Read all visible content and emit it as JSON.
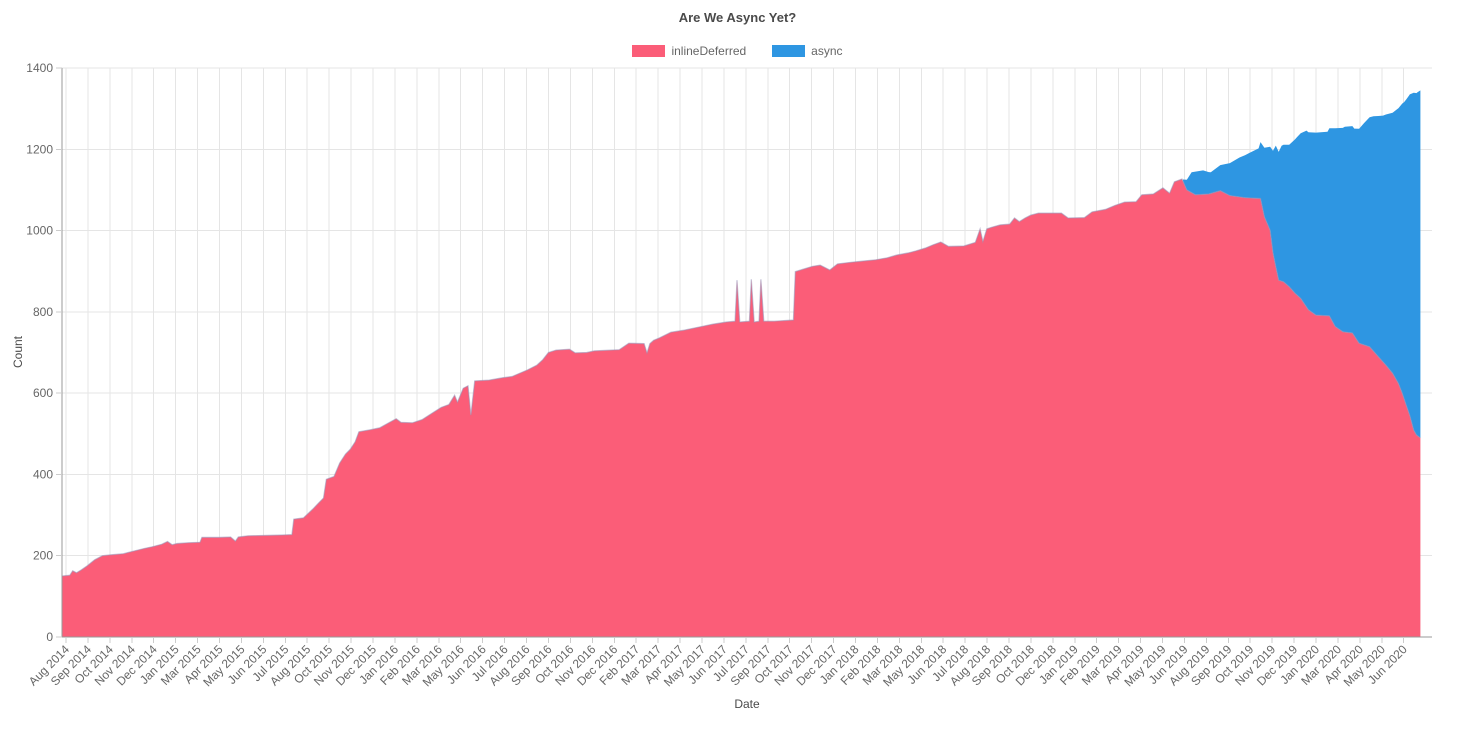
{
  "chart_data": {
    "type": "area",
    "stacked": true,
    "title": "Are We Async Yet?",
    "xlabel": "Date",
    "ylabel": "Count",
    "ylim": [
      0,
      1400
    ],
    "y_ticks": [
      0,
      200,
      400,
      600,
      800,
      1000,
      1200,
      1400
    ],
    "x_tick_labels": [
      "Aug 2014",
      "Sep 2014",
      "Oct 2014",
      "Nov 2014",
      "Dec 2014",
      "Jan 2015",
      "Mar 2015",
      "Apr 2015",
      "May 2015",
      "Jun 2015",
      "Jul 2015",
      "Aug 2015",
      "Oct 2015",
      "Nov 2015",
      "Dec 2015",
      "Jan 2016",
      "Feb 2016",
      "Mar 2016",
      "May 2016",
      "Jun 2016",
      "Jul 2016",
      "Aug 2016",
      "Sep 2016",
      "Oct 2016",
      "Nov 2016",
      "Dec 2016",
      "Feb 2017",
      "Mar 2017",
      "Apr 2017",
      "May 2017",
      "Jun 2017",
      "Jul 2017",
      "Sep 2017",
      "Oct 2017",
      "Nov 2017",
      "Dec 2017",
      "Jan 2018",
      "Feb 2018",
      "Mar 2018",
      "May 2018",
      "Jun 2018",
      "Jul 2018",
      "Aug 2018",
      "Sep 2018",
      "Oct 2018",
      "Dec 2018",
      "Jan 2019",
      "Feb 2019",
      "Mar 2019",
      "Apr 2019",
      "May 2019",
      "Jun 2019",
      "Aug 2019",
      "Sep 2019",
      "Oct 2019",
      "Nov 2019",
      "Dec 2019",
      "Jan 2020",
      "Mar 2020",
      "Apr 2020",
      "May 2020",
      "Jun 2020"
    ],
    "x_unit": "months since Aug 2014 (fractional)",
    "grid": true,
    "legend_position": "top",
    "colors": {
      "grid": "#e5e5e5",
      "axis": "#999999",
      "tick": "#cccccc",
      "text": "#666666",
      "line_edge": "rgba(150,150,185,0.55)"
    },
    "series": [
      {
        "name": "inlineDeferred",
        "color": "#fb5d78",
        "points": [
          [
            -0.21,
            150
          ],
          [
            0.2,
            152
          ],
          [
            0.35,
            163
          ],
          [
            0.55,
            158
          ],
          [
            0.8,
            165
          ],
          [
            1.1,
            175
          ],
          [
            1.5,
            190
          ],
          [
            1.9,
            200
          ],
          [
            2.3,
            202
          ],
          [
            3.0,
            205
          ],
          [
            3.6,
            212
          ],
          [
            4.1,
            218
          ],
          [
            4.5,
            222
          ],
          [
            5.0,
            228
          ],
          [
            5.3,
            235
          ],
          [
            5.55,
            227
          ],
          [
            5.8,
            230
          ],
          [
            6.4,
            232
          ],
          [
            7.0,
            233
          ],
          [
            7.1,
            245
          ],
          [
            8.0,
            245
          ],
          [
            8.6,
            246
          ],
          [
            8.85,
            236
          ],
          [
            9.0,
            246
          ],
          [
            9.5,
            249
          ],
          [
            10.5,
            250
          ],
          [
            11.3,
            251
          ],
          [
            11.8,
            252
          ],
          [
            11.9,
            290
          ],
          [
            12.4,
            293
          ],
          [
            12.9,
            315
          ],
          [
            13.2,
            330
          ],
          [
            13.45,
            342
          ],
          [
            13.6,
            388
          ],
          [
            14.0,
            395
          ],
          [
            14.3,
            428
          ],
          [
            14.6,
            450
          ],
          [
            14.85,
            462
          ],
          [
            15.1,
            480
          ],
          [
            15.3,
            505
          ],
          [
            15.9,
            510
          ],
          [
            16.4,
            515
          ],
          [
            16.9,
            528
          ],
          [
            17.25,
            537
          ],
          [
            17.5,
            528
          ],
          [
            18.1,
            527
          ],
          [
            18.6,
            535
          ],
          [
            19.1,
            550
          ],
          [
            19.6,
            565
          ],
          [
            20.0,
            572
          ],
          [
            20.3,
            595
          ],
          [
            20.45,
            578
          ],
          [
            20.75,
            612
          ],
          [
            21.0,
            618
          ],
          [
            21.15,
            546
          ],
          [
            21.35,
            630
          ],
          [
            22.1,
            632
          ],
          [
            22.8,
            638
          ],
          [
            23.3,
            641
          ],
          [
            24.1,
            657
          ],
          [
            24.6,
            669
          ],
          [
            24.9,
            682
          ],
          [
            25.2,
            700
          ],
          [
            25.6,
            706
          ],
          [
            26.3,
            708
          ],
          [
            26.6,
            699
          ],
          [
            27.2,
            700
          ],
          [
            27.6,
            704
          ],
          [
            28.9,
            707
          ],
          [
            29.4,
            723
          ],
          [
            30.2,
            722
          ],
          [
            30.35,
            699
          ],
          [
            30.5,
            722
          ],
          [
            30.7,
            730
          ],
          [
            31.0,
            736
          ],
          [
            31.6,
            750
          ],
          [
            32.3,
            755
          ],
          [
            33.1,
            763
          ],
          [
            33.8,
            770
          ],
          [
            34.5,
            775
          ],
          [
            34.95,
            777
          ],
          [
            35.05,
            878
          ],
          [
            35.2,
            775
          ],
          [
            35.7,
            777
          ],
          [
            35.8,
            880
          ],
          [
            35.95,
            775
          ],
          [
            36.2,
            777
          ],
          [
            36.3,
            880
          ],
          [
            36.45,
            777
          ],
          [
            37.0,
            777
          ],
          [
            38.0,
            780
          ],
          [
            38.1,
            899
          ],
          [
            38.5,
            905
          ],
          [
            39.0,
            912
          ],
          [
            39.4,
            915
          ],
          [
            39.9,
            903
          ],
          [
            40.3,
            918
          ],
          [
            41.0,
            922
          ],
          [
            41.6,
            925
          ],
          [
            42.3,
            928
          ],
          [
            42.9,
            933
          ],
          [
            43.4,
            940
          ],
          [
            44.0,
            945
          ],
          [
            44.4,
            950
          ],
          [
            44.9,
            957
          ],
          [
            45.3,
            965
          ],
          [
            45.7,
            972
          ],
          [
            46.1,
            961
          ],
          [
            46.9,
            962
          ],
          [
            47.5,
            971
          ],
          [
            47.75,
            1004
          ],
          [
            47.9,
            973
          ],
          [
            48.1,
            1004
          ],
          [
            48.35,
            1008
          ],
          [
            48.8,
            1014
          ],
          [
            49.3,
            1016
          ],
          [
            49.55,
            1031
          ],
          [
            49.8,
            1022
          ],
          [
            50.1,
            1031
          ],
          [
            50.4,
            1038
          ],
          [
            50.8,
            1043
          ],
          [
            52.0,
            1043
          ],
          [
            52.35,
            1031
          ],
          [
            53.2,
            1032
          ],
          [
            53.6,
            1046
          ],
          [
            54.3,
            1052
          ],
          [
            54.8,
            1062
          ],
          [
            55.3,
            1070
          ],
          [
            55.9,
            1071
          ],
          [
            56.2,
            1088
          ],
          [
            56.8,
            1090
          ],
          [
            57.3,
            1105
          ],
          [
            57.65,
            1092
          ],
          [
            57.9,
            1120
          ],
          [
            58.3,
            1127
          ],
          [
            58.55,
            1100
          ],
          [
            59.0,
            1088
          ],
          [
            59.7,
            1090
          ],
          [
            60.3,
            1098
          ],
          [
            60.8,
            1086
          ],
          [
            61.6,
            1081
          ],
          [
            62.4,
            1079
          ],
          [
            62.6,
            1034
          ],
          [
            62.9,
            1001
          ],
          [
            63.05,
            945
          ],
          [
            63.2,
            911
          ],
          [
            63.35,
            878
          ],
          [
            63.6,
            874
          ],
          [
            63.9,
            862
          ],
          [
            64.2,
            846
          ],
          [
            64.5,
            833
          ],
          [
            64.9,
            805
          ],
          [
            65.3,
            792
          ],
          [
            66.0,
            790
          ],
          [
            66.3,
            764
          ],
          [
            66.7,
            751
          ],
          [
            67.2,
            748
          ],
          [
            67.55,
            723
          ],
          [
            68.1,
            714
          ],
          [
            68.55,
            690
          ],
          [
            68.95,
            669
          ],
          [
            69.3,
            649
          ],
          [
            69.6,
            624
          ],
          [
            69.8,
            600
          ],
          [
            70.0,
            572
          ],
          [
            70.2,
            545
          ],
          [
            70.4,
            509
          ],
          [
            70.55,
            497
          ],
          [
            70.75,
            490
          ]
        ]
      },
      {
        "name": "async",
        "color": "#2e96e2",
        "points": [
          [
            58.35,
            4
          ],
          [
            58.6,
            30
          ],
          [
            58.8,
            50
          ],
          [
            59.0,
            57
          ],
          [
            59.4,
            59
          ],
          [
            59.8,
            52
          ],
          [
            60.3,
            63
          ],
          [
            60.8,
            80
          ],
          [
            61.3,
            97
          ],
          [
            61.8,
            110
          ],
          [
            62.3,
            123
          ],
          [
            62.6,
            170
          ],
          [
            62.9,
            205
          ],
          [
            63.2,
            298
          ],
          [
            63.5,
            333
          ],
          [
            63.9,
            349
          ],
          [
            64.3,
            388
          ],
          [
            64.8,
            434
          ],
          [
            65.3,
            449
          ],
          [
            65.9,
            453
          ],
          [
            66.3,
            488
          ],
          [
            66.8,
            505
          ],
          [
            67.3,
            510
          ],
          [
            67.8,
            545
          ],
          [
            68.3,
            578
          ],
          [
            68.8,
            606
          ],
          [
            69.3,
            641
          ],
          [
            69.6,
            677
          ],
          [
            69.9,
            730
          ],
          [
            70.15,
            780
          ],
          [
            70.4,
            830
          ],
          [
            70.6,
            845
          ],
          [
            70.75,
            855
          ]
        ]
      }
    ]
  }
}
